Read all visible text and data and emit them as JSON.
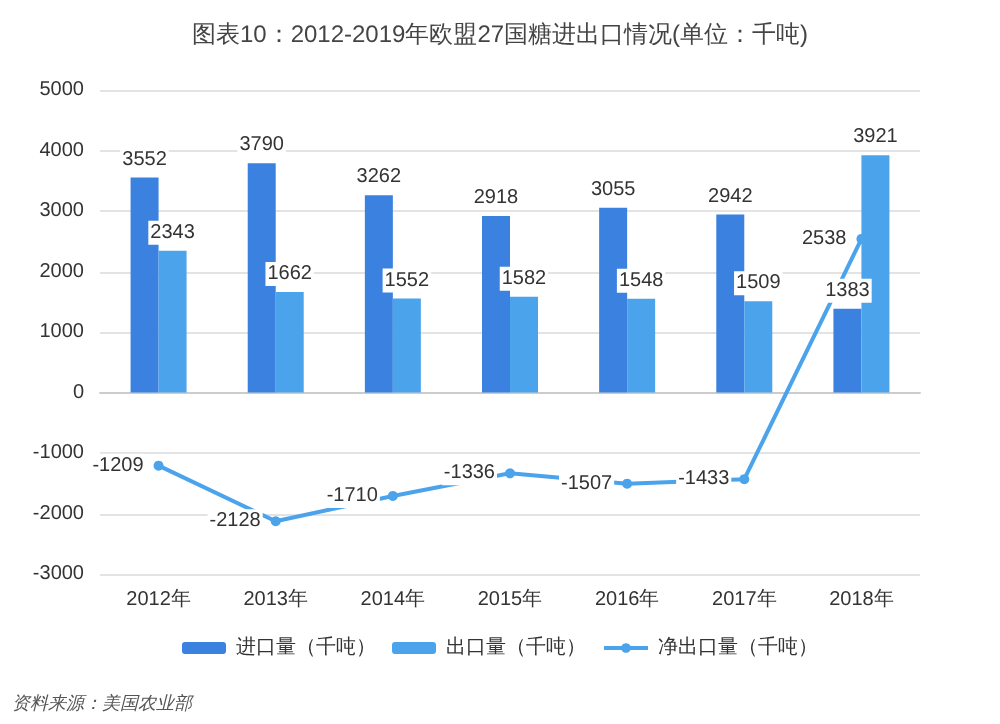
{
  "chart_data": {
    "type": "bar",
    "title": "图表10：2012-2019年欧盟27国糖进出口情况(单位：千吨)",
    "annotations": [
      "资料来源：美国农业部"
    ],
    "categories": [
      "2012年",
      "2013年",
      "2014年",
      "2015年",
      "2016年",
      "2017年",
      "2018年"
    ],
    "series": [
      {
        "name": "进口量（千吨）",
        "color": "#3b82e0",
        "values": [
          3552,
          3790,
          3262,
          2918,
          3055,
          2942,
          1383
        ]
      },
      {
        "name": "出口量（千吨）",
        "color": "#4ba3ec",
        "values": [
          2343,
          1662,
          1552,
          1582,
          1548,
          1509,
          3921
        ]
      },
      {
        "name": "净出口量（千吨）",
        "type": "line",
        "color": "#4ba3ec",
        "marker": "circle",
        "values": [
          -1209,
          -2128,
          -1710,
          -1336,
          -1507,
          -1433,
          2538
        ]
      }
    ],
    "ylim": [
      -3000,
      5000
    ],
    "yticks": [
      -3000,
      -2000,
      -1000,
      0,
      1000,
      2000,
      3000,
      4000,
      5000
    ],
    "grid": "y",
    "legend": "bottom",
    "data_labels": true
  }
}
